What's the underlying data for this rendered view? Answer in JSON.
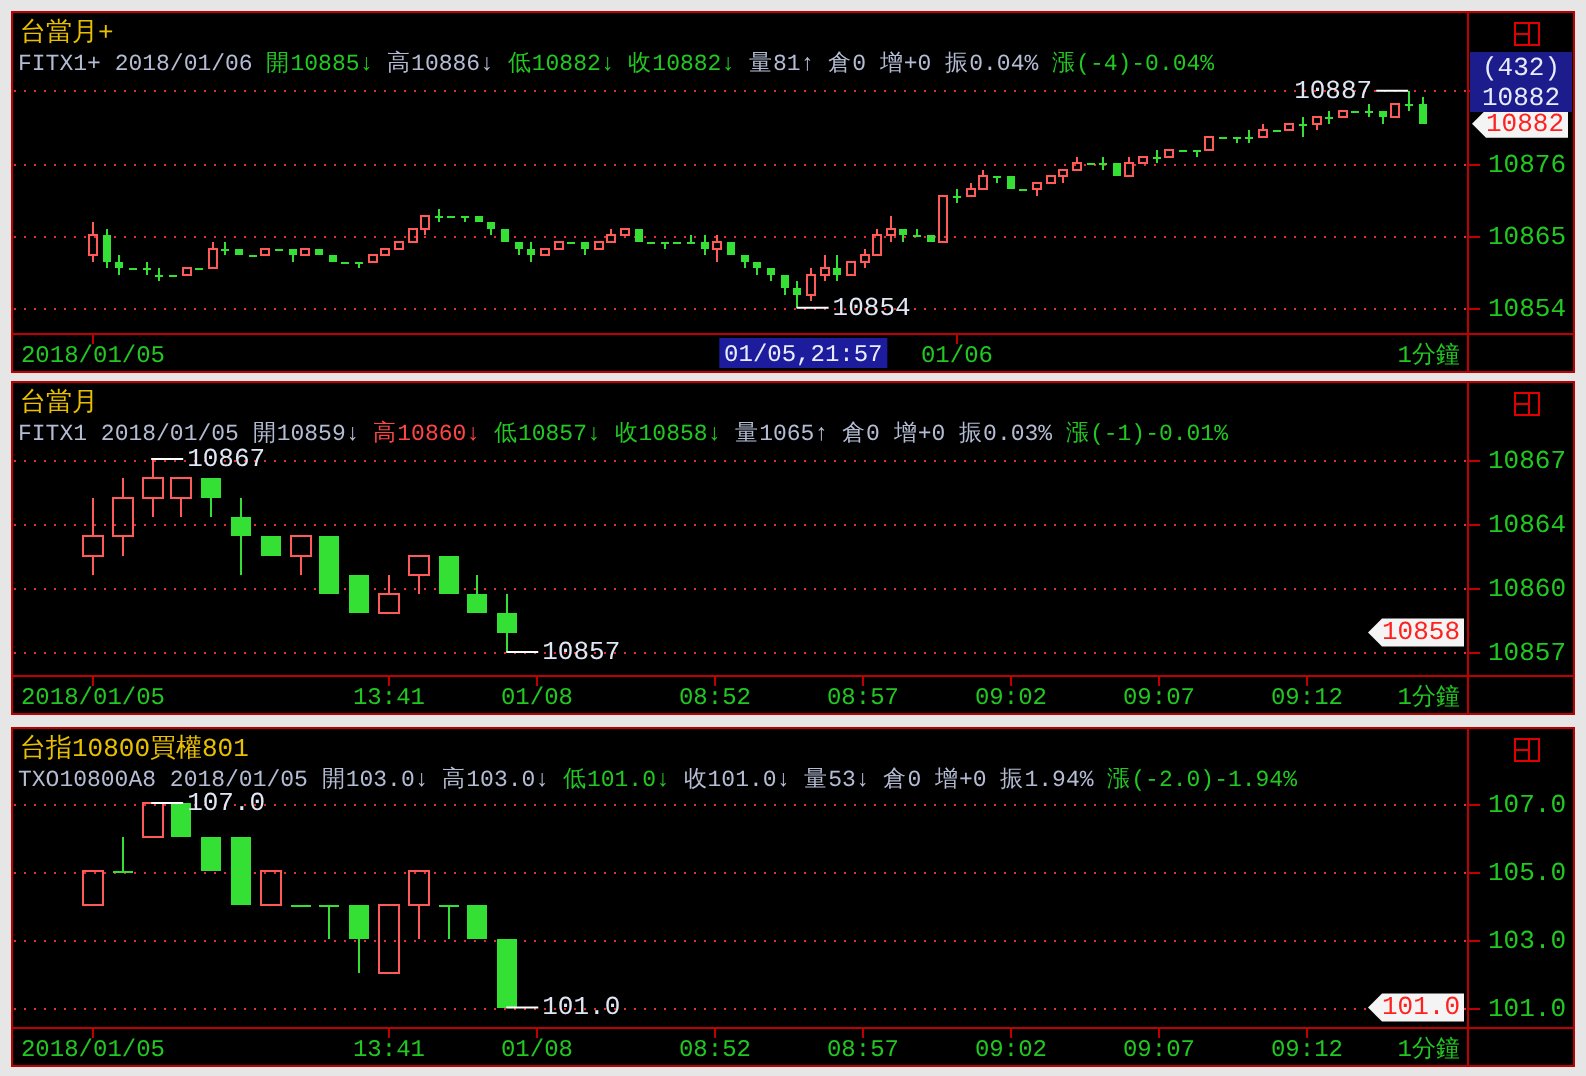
{
  "chart_data": [
    {
      "type": "candlestick",
      "title": "台當月+",
      "subtitle": "FITX1+ 2018/01/06 開10885↓ 高10886↓ 低10882↓ 收10882↓ 量81↑ 倉0 增+0 振0.04% 漲(-4)-0.04%",
      "categories": [
        "2018/01/05",
        null,
        null,
        null,
        null,
        null,
        null,
        null,
        null,
        null,
        null,
        null,
        null,
        null,
        null,
        null,
        null,
        null,
        null,
        null,
        null,
        null,
        null,
        null,
        null,
        null,
        null,
        null,
        null,
        null,
        null,
        null,
        null,
        null,
        null,
        null,
        null,
        null,
        null,
        null,
        null,
        null,
        null,
        null,
        null,
        null,
        null,
        null,
        null,
        null,
        null,
        null,
        null,
        null,
        null,
        null,
        null,
        null,
        null,
        null,
        null,
        null,
        null,
        null,
        null,
        "01/06",
        null,
        null,
        null,
        null,
        null,
        null,
        null,
        null,
        null,
        null,
        null,
        null,
        null,
        null,
        null,
        null,
        null,
        null,
        null,
        null,
        null,
        null,
        null,
        null,
        null,
        null,
        null,
        null,
        null,
        null,
        null,
        null,
        null,
        null,
        null,
        null,
        null,
        null
      ],
      "ohlc": [
        [
          10862,
          10867,
          10861,
          10865
        ],
        [
          10865,
          10866,
          10860,
          10861
        ],
        [
          10861,
          10862,
          10859,
          10860
        ],
        [
          10860,
          10860,
          10860,
          10860
        ],
        [
          10860,
          10861,
          10859,
          10860
        ],
        [
          10859,
          10860,
          10858,
          10859
        ],
        [
          10859,
          10859,
          10859,
          10859
        ],
        [
          10859,
          10860,
          10859,
          10860
        ],
        [
          10860,
          10860,
          10860,
          10860
        ],
        [
          10860,
          10864,
          10860,
          10863
        ],
        [
          10863,
          10864,
          10862,
          10863
        ],
        [
          10863,
          10863,
          10862,
          10862
        ],
        [
          10862,
          10862,
          10862,
          10862
        ],
        [
          10862,
          10863,
          10862,
          10863
        ],
        [
          10863,
          10863,
          10863,
          10863
        ],
        [
          10863,
          10863,
          10861,
          10862
        ],
        [
          10862,
          10863,
          10862,
          10863
        ],
        [
          10863,
          10863,
          10862,
          10862
        ],
        [
          10862,
          10862,
          10861,
          10861
        ],
        [
          10861,
          10861,
          10861,
          10861
        ],
        [
          10861,
          10861,
          10860,
          10861
        ],
        [
          10861,
          10862,
          10861,
          10862
        ],
        [
          10862,
          10863,
          10862,
          10863
        ],
        [
          10863,
          10864,
          10863,
          10864
        ],
        [
          10864,
          10866,
          10864,
          10866
        ],
        [
          10866,
          10868,
          10865,
          10868
        ],
        [
          10868,
          10869,
          10867,
          10868
        ],
        [
          10868,
          10868,
          10868,
          10868
        ],
        [
          10868,
          10868,
          10867,
          10868
        ],
        [
          10868,
          10868,
          10867,
          10867
        ],
        [
          10867,
          10867,
          10865,
          10866
        ],
        [
          10866,
          10866,
          10864,
          10864
        ],
        [
          10864,
          10864,
          10862,
          10863
        ],
        [
          10863,
          10864,
          10861,
          10862
        ],
        [
          10862,
          10863,
          10862,
          10863
        ],
        [
          10863,
          10864,
          10863,
          10864
        ],
        [
          10864,
          10864,
          10864,
          10864
        ],
        [
          10864,
          10864,
          10862,
          10863
        ],
        [
          10863,
          10864,
          10863,
          10864
        ],
        [
          10864,
          10866,
          10864,
          10865
        ],
        [
          10865,
          10866,
          10865,
          10866
        ],
        [
          10866,
          10866,
          10864,
          10864
        ],
        [
          10864,
          10864,
          10864,
          10864
        ],
        [
          10864,
          10864,
          10863,
          10864
        ],
        [
          10864,
          10864,
          10864,
          10864
        ],
        [
          10864,
          10865,
          10864,
          10864
        ],
        [
          10864,
          10865,
          10862,
          10863
        ],
        [
          10863,
          10865,
          10861,
          10864
        ],
        [
          10864,
          10864,
          10862,
          10862
        ],
        [
          10862,
          10862,
          10860,
          10861
        ],
        [
          10861,
          10861,
          10859,
          10860
        ],
        [
          10860,
          10860,
          10858,
          10859
        ],
        [
          10859,
          10859,
          10856,
          10857
        ],
        [
          10857,
          10858,
          10854,
          10856
        ],
        [
          10856,
          10860,
          10855,
          10859
        ],
        [
          10859,
          10862,
          10858,
          10860
        ],
        [
          10860,
          10862,
          10858,
          10859
        ],
        [
          10859,
          10861,
          10859,
          10861
        ],
        [
          10861,
          10863,
          10860,
          10862
        ],
        [
          10862,
          10866,
          10862,
          10865
        ],
        [
          10865,
          10868,
          10864,
          10866
        ],
        [
          10866,
          10866,
          10864,
          10865
        ],
        [
          10865,
          10866,
          10865,
          10865
        ],
        [
          10865,
          10865,
          10864,
          10864
        ],
        [
          10864,
          10871,
          10864,
          10871
        ],
        [
          10871,
          10872,
          10870,
          10871
        ],
        [
          10871,
          10873,
          10871,
          10872
        ],
        [
          10872,
          10875,
          10872,
          10874
        ],
        [
          10874,
          10874,
          10873,
          10874
        ],
        [
          10874,
          10874,
          10872,
          10872
        ],
        [
          10872,
          10872,
          10872,
          10872
        ],
        [
          10872,
          10873,
          10871,
          10873
        ],
        [
          10873,
          10874,
          10873,
          10874
        ],
        [
          10874,
          10875,
          10873,
          10875
        ],
        [
          10875,
          10877,
          10875,
          10876
        ],
        [
          10876,
          10876,
          10876,
          10876
        ],
        [
          10876,
          10877,
          10875,
          10876
        ],
        [
          10876,
          10876,
          10874,
          10874
        ],
        [
          10874,
          10877,
          10874,
          10876
        ],
        [
          10876,
          10877,
          10876,
          10877
        ],
        [
          10877,
          10878,
          10876,
          10877
        ],
        [
          10877,
          10878,
          10877,
          10878
        ],
        [
          10878,
          10878,
          10878,
          10878
        ],
        [
          10878,
          10878,
          10877,
          10878
        ],
        [
          10878,
          10880,
          10878,
          10880
        ],
        [
          10880,
          10880,
          10880,
          10880
        ],
        [
          10880,
          10880,
          10879,
          10880
        ],
        [
          10880,
          10881,
          10879,
          10880
        ],
        [
          10880,
          10882,
          10880,
          10881
        ],
        [
          10881,
          10881,
          10881,
          10881
        ],
        [
          10881,
          10882,
          10881,
          10882
        ],
        [
          10882,
          10883,
          10880,
          10882
        ],
        [
          10882,
          10883,
          10881,
          10883
        ],
        [
          10883,
          10884,
          10882,
          10883
        ],
        [
          10883,
          10884,
          10883,
          10884
        ],
        [
          10884,
          10884,
          10884,
          10884
        ],
        [
          10884,
          10885,
          10883,
          10884
        ],
        [
          10884,
          10884,
          10882,
          10883
        ],
        [
          10883,
          10885,
          10883,
          10885
        ],
        [
          10885,
          10887,
          10884,
          10885
        ],
        [
          10885,
          10886,
          10882,
          10882
        ],
        null,
        null,
        null
      ],
      "ylim": [
        10850,
        10899
      ],
      "yticks": [
        10854,
        10865,
        10876,
        {
          "value": 10887,
          "label": null
        }
      ],
      "grid": "y",
      "annotations": [
        "10887",
        "10854",
        "10882",
        "(432)",
        "10882",
        "01/05,21:57",
        "1分鐘"
      ]
    },
    {
      "type": "candlestick",
      "title": "台當月",
      "subtitle": "FITX1 2018/01/05 開10859↓ 高10860↓ 低10857↓ 收10858↓ 量1065↑ 倉0 增+0 振0.03% 漲(-1)-0.01%",
      "categories": [
        "2018/01/05",
        null,
        null,
        null,
        null,
        null,
        null,
        null,
        null,
        null,
        "13:41",
        null,
        null,
        null,
        null,
        "01/08",
        null,
        null,
        null,
        null,
        null,
        "08:52",
        null,
        null,
        null,
        null,
        "08:57",
        null,
        null,
        null,
        null,
        "09:02",
        null,
        null,
        null,
        null,
        "09:07",
        null,
        null,
        null,
        null,
        "09:12",
        null,
        null,
        null,
        null,
        null
      ],
      "ohlc": [
        [
          10862,
          10865,
          10861,
          10863
        ],
        [
          10863,
          10866,
          10862,
          10865
        ],
        [
          10865,
          10867,
          10864,
          10866
        ],
        [
          10865,
          10866,
          10864,
          10866
        ],
        [
          10866,
          10866,
          10864,
          10865
        ],
        [
          10864,
          10865,
          10861,
          10863
        ],
        [
          10863,
          10863,
          10862,
          10862
        ],
        [
          10862,
          10863,
          10861,
          10863
        ],
        [
          10863,
          10863,
          10860,
          10860
        ],
        [
          10861,
          10861,
          10859,
          10859
        ],
        [
          10859,
          10861,
          10859,
          10860
        ],
        [
          10861,
          10862,
          10860,
          10862
        ],
        [
          10862,
          10862,
          10860,
          10860
        ],
        [
          10860,
          10861,
          10859,
          10859
        ],
        [
          10859,
          10860,
          10857,
          10858
        ],
        null,
        null,
        null,
        null,
        null,
        null,
        null,
        null,
        null,
        null,
        null,
        null,
        null,
        null,
        null,
        null,
        null,
        null,
        null,
        null,
        null,
        null,
        null,
        null,
        null,
        null,
        null,
        null,
        null,
        null,
        null,
        null
      ],
      "ylim": [
        10855.75,
        10871
      ],
      "yticks": [
        10857,
        {
          "value": 10860.33,
          "label": "10860"
        },
        {
          "value": 10863.67,
          "label": "10864"
        },
        10867
      ],
      "grid": "y",
      "annotations": [
        "10867",
        "10857",
        "10858",
        "1分鐘"
      ]
    },
    {
      "type": "candlestick",
      "title": "台指10800買權801",
      "subtitle": "TXO10800A8 2018/01/05 開103.0↓ 高103.0↓ 低101.0↓ 收101.0↓ 量53↓ 倉0 增+0 振1.94% 漲(-2.0)-1.94%",
      "categories": [
        "2018/01/05",
        null,
        null,
        null,
        null,
        null,
        null,
        null,
        null,
        null,
        "13:41",
        null,
        null,
        null,
        null,
        "01/08",
        null,
        null,
        null,
        null,
        null,
        "08:52",
        null,
        null,
        null,
        null,
        "08:57",
        null,
        null,
        null,
        null,
        "09:02",
        null,
        null,
        null,
        null,
        "09:07",
        null,
        null,
        null,
        null,
        "09:12",
        null,
        null,
        null,
        null,
        null
      ],
      "ohlc": [
        [
          104,
          105,
          104,
          105
        ],
        [
          105,
          106,
          105,
          105
        ],
        [
          106,
          107,
          106,
          107
        ],
        [
          107,
          107,
          106,
          106
        ],
        [
          106,
          106,
          105,
          105
        ],
        [
          106,
          106,
          104,
          104
        ],
        [
          104,
          105,
          104,
          105
        ],
        [
          104,
          104,
          104,
          104
        ],
        [
          104,
          104,
          103,
          104
        ],
        [
          104,
          104,
          102,
          103
        ],
        [
          102,
          104,
          102,
          104
        ],
        [
          104,
          105,
          103,
          105
        ],
        [
          104,
          104,
          103,
          104
        ],
        [
          104,
          104,
          103,
          103
        ],
        [
          103,
          103,
          101,
          101
        ],
        null,
        null,
        null,
        null,
        null,
        null,
        null,
        null,
        null,
        null,
        null,
        null,
        null,
        null,
        null,
        null,
        null,
        null,
        null,
        null,
        null,
        null,
        null,
        null,
        null,
        null,
        null,
        null,
        null,
        null,
        null,
        null
      ],
      "ylim": [
        100.4,
        109.2
      ],
      "yticks": [
        {
          "value": 101,
          "label": "101.0"
        },
        {
          "value": 103,
          "label": "103.0"
        },
        {
          "value": 105,
          "label": "105.0"
        },
        {
          "value": 107,
          "label": "107.0"
        }
      ],
      "grid": "y",
      "annotations": [
        "107.0",
        "101.0",
        "101.0",
        "1分鐘"
      ]
    }
  ]
}
